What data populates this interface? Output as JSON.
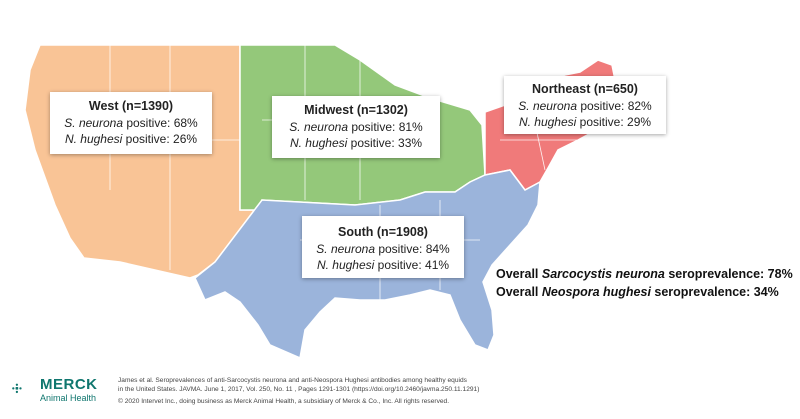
{
  "regions": {
    "west": {
      "title": "West (n=1390)",
      "line1_species": "S. neurona",
      "line1_rest": " positive: 68%",
      "line2_species": "N. hughesi",
      "line2_rest": " positive: 26%",
      "color": "#f9c496"
    },
    "midwest": {
      "title": "Midwest (n=1302)",
      "line1_species": "S. neurona",
      "line1_rest": " positive: 81%",
      "line2_species": "N. hughesi",
      "line2_rest": " positive: 33%",
      "color": "#94c87a"
    },
    "northeast": {
      "title": "Northeast (n=650)",
      "line1_species": "S. neurona",
      "line1_rest": " positive: 82%",
      "line2_species": "N. hughesi",
      "line2_rest": " positive: 29%",
      "color": "#f07a7a"
    },
    "south": {
      "title": "South (n=1908)",
      "line1_species": "S. neurona",
      "line1_rest": " positive: 84%",
      "line2_species": "N. hughesi",
      "line2_rest": " positive: 41%",
      "color": "#9bb4db"
    }
  },
  "overall": {
    "line1_prefix": "Overall ",
    "line1_species": "Sarcocystis neurona",
    "line1_suffix": " seroprevalence: 78%",
    "line2_prefix": "Overall ",
    "line2_species": "Neospora hughesi",
    "line2_suffix": " seroprevalence: 34%"
  },
  "footer": {
    "logo_word": "MERCK",
    "logo_sub": "Animal Health",
    "citation_line1": "James et al. Seroprevalences of anti-Sarcocystis neurona and anti-Neospora Hughesi antibodies among healthy equids",
    "citation_line2": "in the United States. JAVMA. June 1, 2017, Vol. 250, No. 11 , Pages 1291-1301 (https://doi.org/10.2460/javma.250.11.1291)",
    "copyright": "© 2020 Intervet Inc., doing business as Merck Animal Health, a subsidiary of Merck & Co., Inc. All rights reserved.",
    "brand_color": "#0f766e"
  }
}
